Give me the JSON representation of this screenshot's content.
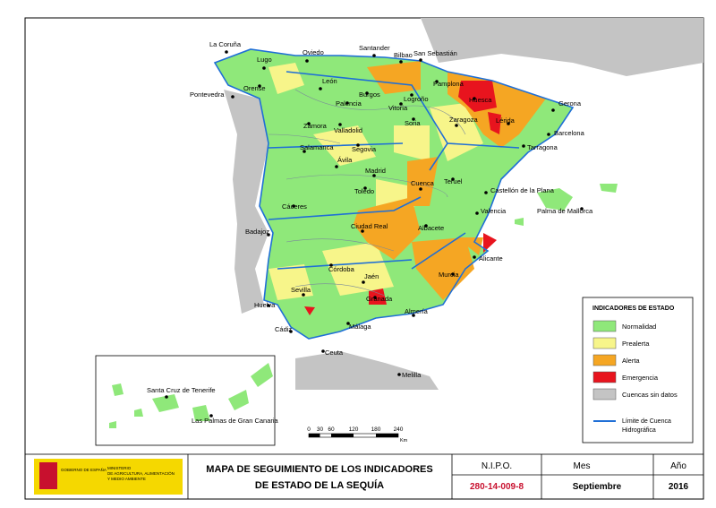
{
  "map": {
    "cities": [
      "La Coruña",
      "Lugo",
      "Oviedo",
      "Santander",
      "Bilbao",
      "San Sebastián",
      "Pontevedra",
      "Orense",
      "León",
      "Vitoria",
      "Pamplona",
      "Logroño",
      "Burgos",
      "Palencia",
      "Huesca",
      "Valladolid",
      "Soria",
      "Zaragoza",
      "Lérida",
      "Gerona",
      "Zamora",
      "Barcelona",
      "Tarragona",
      "Salamanca",
      "Segovia",
      "Ávila",
      "Madrid",
      "Cuenca",
      "Teruel",
      "Castellón de la Plana",
      "Toledo",
      "Cáceres",
      "Palma de Mallorca",
      "Valencia",
      "Badajoz",
      "Ciudad Real",
      "Albacete",
      "Alicante",
      "Córdoba",
      "Jaén",
      "Murcia",
      "Sevilla",
      "Granada",
      "Huelva",
      "Almería",
      "Málaga",
      "Cádiz",
      "Ceuta",
      "Melilla",
      "Santa Cruz de Tenerife",
      "Las Palmas de Gran Canaria"
    ],
    "legend": {
      "title": "INDICADORES DE ESTADO",
      "items": [
        {
          "label": "Normalidad",
          "color": "#8fe87a"
        },
        {
          "label": "Prealerta",
          "color": "#f7f58a"
        },
        {
          "label": "Alerta",
          "color": "#f5a623"
        },
        {
          "label": "Emergencia",
          "color": "#e8141e"
        },
        {
          "label": "Cuencas sin datos",
          "color": "#c4c4c4"
        }
      ],
      "line_label": [
        "Límite de Cuenca",
        "Hidrográfica"
      ]
    },
    "scale": {
      "ticks": [
        "0",
        "30",
        "60",
        "120",
        "180",
        "240"
      ],
      "unit": "Km"
    }
  },
  "footer": {
    "gov": "GOBIERNO DE ESPAÑA",
    "ministry": [
      "MINISTERIO",
      "DE AGRICULTURA, ALIMENTACIÓN",
      "Y MEDIO AMBIENTE"
    ],
    "title": [
      "MAPA DE SEGUIMIENTO DE LOS INDICADORES",
      "DE ESTADO DE LA SEQUÍA"
    ],
    "nipo_label": "N.I.P.O.",
    "nipo": "280-14-009-8",
    "month_label": "Mes",
    "month": "Septiembre",
    "year_label": "Año",
    "year": "2016"
  }
}
